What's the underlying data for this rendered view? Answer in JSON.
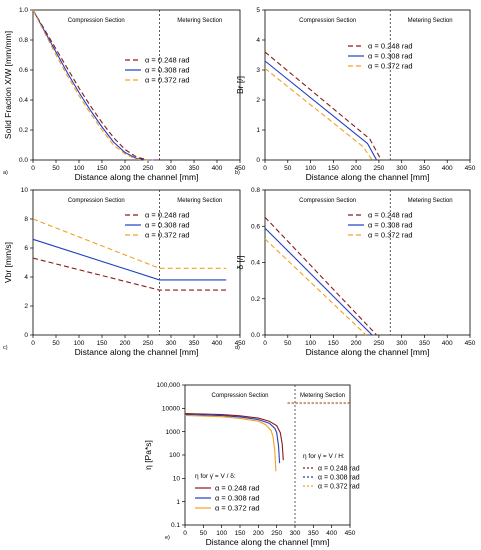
{
  "colors": {
    "c1": "#8b1a1a",
    "c2": "#1f3fc2",
    "c3": "#f4a024",
    "divider": "#333333"
  },
  "chart_data": [
    {
      "panel": "a)",
      "type": "line",
      "ylabel": "Solid Fraction X/W [mm/mm]",
      "xlabel": "Distance along the channel [mm]",
      "xlim": [
        0,
        450
      ],
      "ylim": [
        0,
        1.0
      ],
      "xticks": [
        0,
        50,
        100,
        150,
        200,
        250,
        300,
        350,
        400,
        450
      ],
      "yticks": [
        0.0,
        0.2,
        0.4,
        0.6,
        0.8,
        1.0
      ],
      "sections": [
        "Compression Section",
        "Metering Section"
      ],
      "divider_x": 275,
      "legend_position": "center-right",
      "series": [
        {
          "name": "α = 0.248 rad",
          "dash": "5,3",
          "color_key": "c1",
          "x": [
            0,
            25,
            50,
            75,
            100,
            125,
            150,
            175,
            200,
            225,
            250,
            270
          ],
          "y": [
            1.0,
            0.87,
            0.74,
            0.61,
            0.48,
            0.36,
            0.25,
            0.15,
            0.07,
            0.02,
            0.0,
            0.0
          ]
        },
        {
          "name": "α = 0.308 rad",
          "dash": "",
          "color_key": "c2",
          "x": [
            0,
            25,
            50,
            75,
            100,
            125,
            150,
            175,
            200,
            225,
            250,
            265
          ],
          "y": [
            1.0,
            0.86,
            0.72,
            0.58,
            0.45,
            0.33,
            0.22,
            0.12,
            0.05,
            0.01,
            0.0,
            0.0
          ]
        },
        {
          "name": "α = 0.372 rad",
          "dash": "5,3",
          "color_key": "c3",
          "x": [
            0,
            25,
            50,
            75,
            100,
            125,
            150,
            175,
            200,
            225,
            250,
            260
          ],
          "y": [
            1.0,
            0.85,
            0.7,
            0.56,
            0.43,
            0.31,
            0.2,
            0.1,
            0.04,
            0.005,
            0.0,
            0.0
          ]
        }
      ]
    },
    {
      "panel": "b)",
      "type": "line",
      "ylabel": "Br [/]",
      "xlabel": "Distance along the channel [mm]",
      "xlim": [
        0,
        450
      ],
      "ylim": [
        0,
        5
      ],
      "xticks": [
        0,
        50,
        100,
        150,
        200,
        250,
        300,
        350,
        400,
        450
      ],
      "yticks": [
        0,
        1,
        2,
        3,
        4,
        5
      ],
      "sections": [
        "Compression Section",
        "Metering Section"
      ],
      "divider_x": 275,
      "legend_position": "top-right",
      "series": [
        {
          "name": "α = 0.248 rad",
          "dash": "5,3",
          "color_key": "c1",
          "x": [
            0,
            230,
            255
          ],
          "y": [
            3.6,
            0.7,
            0.0
          ]
        },
        {
          "name": "α = 0.308 rad",
          "dash": "",
          "color_key": "c2",
          "x": [
            0,
            225,
            245
          ],
          "y": [
            3.3,
            0.55,
            0.0
          ]
        },
        {
          "name": "α = 0.372 rad",
          "dash": "5,3",
          "color_key": "c3",
          "x": [
            0,
            215,
            235
          ],
          "y": [
            3.05,
            0.45,
            0.0
          ]
        }
      ]
    },
    {
      "panel": "c)",
      "type": "line",
      "ylabel": "Vbr [mm/s]",
      "xlabel": "Distance along the channel [mm]",
      "xlim": [
        0,
        450
      ],
      "ylim": [
        0,
        10
      ],
      "xticks": [
        0,
        50,
        100,
        150,
        200,
        250,
        300,
        350,
        400,
        450
      ],
      "yticks": [
        0,
        2,
        4,
        6,
        8,
        10
      ],
      "sections": [
        "Compression Section",
        "Metering Section"
      ],
      "divider_x": 275,
      "legend_position": "top-right",
      "series": [
        {
          "name": "α = 0.248 rad",
          "dash": "5,3",
          "color_key": "c1",
          "x": [
            0,
            275,
            420
          ],
          "y": [
            5.3,
            3.1,
            3.1
          ]
        },
        {
          "name": "α = 0.308 rad",
          "dash": "",
          "color_key": "c2",
          "x": [
            0,
            275,
            420
          ],
          "y": [
            6.6,
            3.8,
            3.8
          ]
        },
        {
          "name": "α = 0.372 rad",
          "dash": "5,3",
          "color_key": "c3",
          "x": [
            0,
            275,
            420
          ],
          "y": [
            8.0,
            4.6,
            4.6
          ]
        }
      ]
    },
    {
      "panel": "d)",
      "type": "line",
      "ylabel": "δ [/]",
      "xlabel": "Distance along the channel [mm]",
      "xlim": [
        0,
        450
      ],
      "ylim": [
        0,
        0.8
      ],
      "xticks": [
        0,
        50,
        100,
        150,
        200,
        250,
        300,
        350,
        400,
        450
      ],
      "yticks": [
        0.0,
        0.2,
        0.4,
        0.6,
        0.8
      ],
      "sections": [
        "Compression Section",
        "Metering Section"
      ],
      "divider_x": 275,
      "legend_position": "top-right",
      "series": [
        {
          "name": "α = 0.248 rad",
          "dash": "5,3",
          "color_key": "c1",
          "x": [
            0,
            245
          ],
          "y": [
            0.65,
            0.0
          ]
        },
        {
          "name": "α = 0.308 rad",
          "dash": "",
          "color_key": "c2",
          "x": [
            0,
            235
          ],
          "y": [
            0.59,
            0.0
          ]
        },
        {
          "name": "α = 0.372 rad",
          "dash": "5,3",
          "color_key": "c3",
          "x": [
            0,
            222
          ],
          "y": [
            0.53,
            0.0
          ]
        }
      ]
    },
    {
      "panel": "e)",
      "type": "line",
      "log_y": true,
      "ylabel": "η [Pa*s]",
      "xlabel": "Distance along the channel [mm]",
      "xlim": [
        0,
        450
      ],
      "ylim": [
        0.1,
        100000
      ],
      "xticks": [
        0,
        50,
        100,
        150,
        200,
        250,
        300,
        350,
        400,
        450
      ],
      "yticks": [
        0.1,
        1,
        10,
        100,
        1000,
        10000,
        100000
      ],
      "yticklabels": [
        "0.1",
        "1",
        "10",
        "100",
        "1000",
        "10000",
        "100,000"
      ],
      "sections": [
        "Compression Section",
        "Metering Section"
      ],
      "divider_x": 300,
      "legend_position": "center-left",
      "legend_title_compression": "η for γ̇ = V / δ:",
      "legend_title_metering": "η for γ̇ = V / H:",
      "series": [
        {
          "name": "α = 0.248 rad",
          "dash": "",
          "color_key": "c1",
          "x": [
            0,
            100,
            150,
            200,
            230,
            250,
            260,
            265,
            268
          ],
          "y": [
            6000,
            5400,
            4800,
            3800,
            2800,
            1800,
            900,
            300,
            60
          ]
        },
        {
          "name": "α = 0.308 rad",
          "dash": "",
          "color_key": "c2",
          "x": [
            0,
            100,
            150,
            200,
            230,
            245,
            250,
            255,
            258
          ],
          "y": [
            5500,
            4900,
            4300,
            3300,
            2300,
            1400,
            900,
            250,
            45
          ]
        },
        {
          "name": "α = 0.372 rad",
          "dash": "",
          "color_key": "c3",
          "x": [
            0,
            100,
            150,
            200,
            220,
            235,
            240,
            245,
            248
          ],
          "y": [
            5000,
            4400,
            3700,
            2800,
            2000,
            1100,
            600,
            150,
            20
          ]
        },
        {
          "name": "α = 0.248 rad",
          "dash": "2,2",
          "color_key": "c1",
          "x": [
            280,
            450
          ],
          "y": [
            17000,
            17000
          ]
        },
        {
          "name": "α = 0.308 rad",
          "dash": "2,2",
          "color_key": "c2",
          "x": [
            280,
            450
          ],
          "y": [
            16500,
            16500
          ]
        },
        {
          "name": "α = 0.372 rad",
          "dash": "2,2",
          "color_key": "c3",
          "x": [
            280,
            450
          ],
          "y": [
            16000,
            16000
          ]
        }
      ]
    }
  ]
}
